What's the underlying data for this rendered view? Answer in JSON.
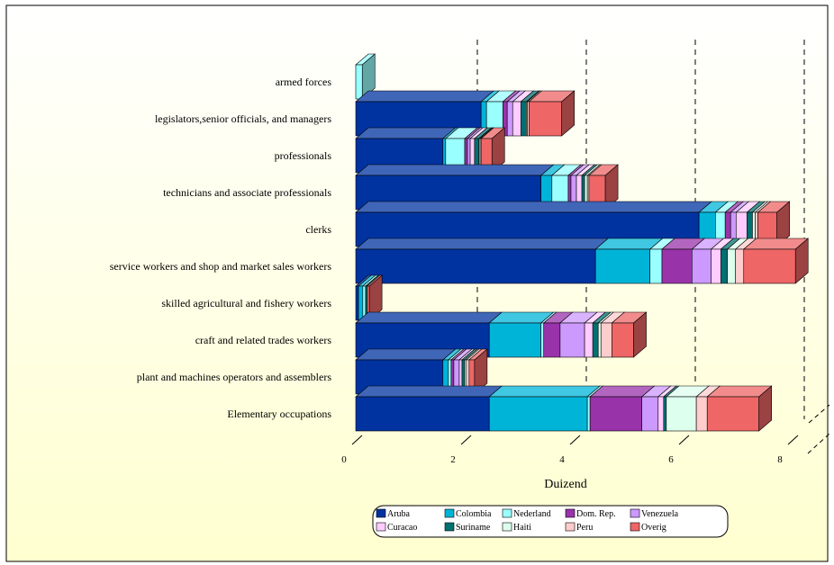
{
  "chart_data": {
    "type": "bar",
    "orientation": "horizontal",
    "stacked": true,
    "three_d": true,
    "xlabel": "Duizend",
    "xlim": [
      0,
      8
    ],
    "xticks": [
      0,
      2,
      4,
      6,
      8
    ],
    "grid": "vertical dashed",
    "legend_position": "bottom",
    "categories": [
      "armed forces",
      "legislators,senior officials, and managers",
      "professionals",
      "technicians and associate professionals",
      "clerks",
      "service workers and shop and market sales workers",
      "skilled agricultural and fishery workers",
      "craft and related trades workers",
      "plant and machines operators and assemblers",
      "Elementary occupations"
    ],
    "series": [
      {
        "name": "Aruba",
        "color": "#0033a0",
        "values": [
          0.0,
          2.3,
          1.6,
          3.4,
          6.3,
          4.4,
          0.05,
          2.45,
          1.6,
          2.45
        ]
      },
      {
        "name": "Colombia",
        "color": "#00b4d8",
        "values": [
          0.0,
          0.1,
          0.05,
          0.2,
          0.3,
          1.0,
          0.08,
          0.95,
          0.1,
          1.8
        ]
      },
      {
        "name": "Nederland",
        "color": "#99ffff",
        "values": [
          0.12,
          0.3,
          0.35,
          0.3,
          0.18,
          0.22,
          0.05,
          0.05,
          0.05,
          0.05
        ]
      },
      {
        "name": "Dom. Rep.",
        "color": "#9933aa",
        "values": [
          0.0,
          0.08,
          0.05,
          0.05,
          0.1,
          0.55,
          0.0,
          0.3,
          0.05,
          0.95
        ]
      },
      {
        "name": "Venezuela",
        "color": "#cc99ff",
        "values": [
          0.0,
          0.1,
          0.05,
          0.1,
          0.1,
          0.35,
          0.0,
          0.45,
          0.1,
          0.3
        ]
      },
      {
        "name": "Curacao",
        "color": "#ffccff",
        "values": [
          0.0,
          0.15,
          0.08,
          0.1,
          0.2,
          0.18,
          0.0,
          0.15,
          0.05,
          0.1
        ]
      },
      {
        "name": "Suriname",
        "color": "#007070",
        "values": [
          0.0,
          0.1,
          0.08,
          0.05,
          0.1,
          0.12,
          0.03,
          0.1,
          0.05,
          0.05
        ]
      },
      {
        "name": "Haiti",
        "color": "#ddffee",
        "values": [
          0.0,
          0.02,
          0.02,
          0.05,
          0.05,
          0.15,
          0.0,
          0.05,
          0.03,
          0.55
        ]
      },
      {
        "name": "Peru",
        "color": "#ffcccc",
        "values": [
          0.0,
          0.03,
          0.02,
          0.03,
          0.05,
          0.15,
          0.0,
          0.2,
          0.05,
          0.2
        ]
      },
      {
        "name": "Overig",
        "color": "#ee6666",
        "values": [
          0.0,
          0.6,
          0.2,
          0.3,
          0.35,
          0.95,
          0.04,
          0.4,
          0.1,
          0.95
        ]
      }
    ]
  }
}
